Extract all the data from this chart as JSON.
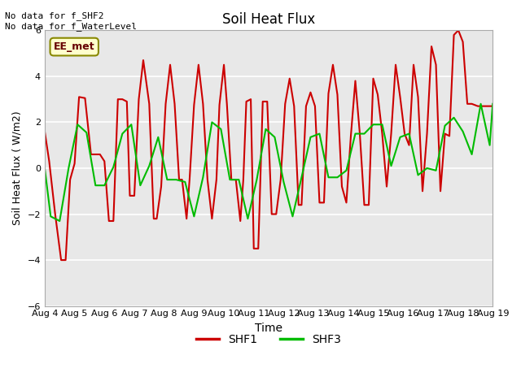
{
  "title": "Soil Heat Flux",
  "xlabel": "Time",
  "ylabel": "Soil Heat Flux ( W/m2)",
  "ylim": [
    -6,
    6
  ],
  "yticks": [
    -6,
    -4,
    -2,
    0,
    2,
    4,
    6
  ],
  "xtick_labels": [
    "Aug 4",
    "Aug 5",
    "Aug 6",
    "Aug 7",
    "Aug 8",
    "Aug 9",
    "Aug 10",
    "Aug 11",
    "Aug 12",
    "Aug 13",
    "Aug 14",
    "Aug 15",
    "Aug 16",
    "Aug 17",
    "Aug 18",
    "Aug 19"
  ],
  "bg_color": "#e8e8e8",
  "annotation_text": "No data for f_SHF2\nNo data for f_WaterLevel",
  "box_label": "EE_met",
  "shf1_color": "#cc0000",
  "shf3_color": "#00bb00",
  "shf1_x": [
    0.0,
    0.15,
    0.35,
    0.55,
    0.7,
    0.85,
    1.0,
    1.15,
    1.35,
    1.55,
    1.7,
    1.85,
    2.0,
    2.15,
    2.3,
    2.45,
    2.6,
    2.75,
    2.85,
    3.0,
    3.15,
    3.3,
    3.5,
    3.65,
    3.75,
    3.9,
    4.05,
    4.2,
    4.35,
    4.5,
    4.6,
    4.75,
    4.85,
    5.0,
    5.15,
    5.3,
    5.45,
    5.6,
    5.75,
    5.85,
    6.0,
    6.1,
    6.25,
    6.4,
    6.55,
    6.65,
    6.75,
    6.9,
    7.0,
    7.15,
    7.3,
    7.45,
    7.6,
    7.75,
    7.9,
    8.05,
    8.2,
    8.35,
    8.5,
    8.6,
    8.75,
    8.9,
    9.05,
    9.2,
    9.35,
    9.5,
    9.65,
    9.8,
    9.95,
    10.1,
    10.25,
    10.4,
    10.55,
    10.7,
    10.85,
    11.0,
    11.15,
    11.3,
    11.45,
    11.6,
    11.75,
    11.9,
    12.05,
    12.2,
    12.35,
    12.5,
    12.65,
    12.8,
    12.95,
    13.1,
    13.25,
    13.4,
    13.55,
    13.7,
    13.85,
    14.0,
    14.15,
    14.3,
    14.5,
    14.7,
    14.9,
    15.0
  ],
  "shf1_y": [
    1.6,
    0.3,
    -2.0,
    -4.0,
    -4.0,
    -0.5,
    0.2,
    3.1,
    3.05,
    0.6,
    0.6,
    0.6,
    0.3,
    -2.3,
    -2.3,
    3.0,
    3.0,
    2.9,
    -1.2,
    -1.2,
    3.0,
    4.7,
    2.8,
    -2.2,
    -2.2,
    -0.8,
    2.8,
    4.5,
    2.8,
    -0.5,
    -0.5,
    -2.2,
    -0.5,
    2.75,
    4.5,
    2.8,
    -0.5,
    -2.2,
    -0.5,
    2.75,
    4.5,
    2.8,
    -0.5,
    -0.5,
    -2.3,
    -0.5,
    2.9,
    3.0,
    -3.5,
    -3.5,
    2.9,
    2.9,
    -2.0,
    -2.0,
    -0.5,
    2.8,
    3.9,
    2.7,
    -1.6,
    -1.6,
    2.7,
    3.3,
    2.7,
    -1.5,
    -1.5,
    3.25,
    4.5,
    3.2,
    -0.8,
    -1.5,
    1.4,
    3.8,
    1.5,
    -1.6,
    -1.6,
    3.9,
    3.2,
    1.5,
    -0.8,
    1.5,
    4.5,
    3.1,
    1.5,
    1.0,
    4.5,
    3.1,
    -1.0,
    1.5,
    5.3,
    4.5,
    -1.0,
    1.5,
    1.4,
    5.8,
    6.0,
    5.5,
    2.8,
    2.8,
    2.7,
    2.7,
    2.7,
    2.7
  ],
  "shf3_x": [
    0.0,
    0.2,
    0.5,
    0.8,
    1.1,
    1.4,
    1.7,
    2.0,
    2.3,
    2.6,
    2.9,
    3.2,
    3.5,
    3.8,
    4.1,
    4.4,
    4.7,
    5.0,
    5.3,
    5.6,
    5.9,
    6.2,
    6.5,
    6.8,
    7.1,
    7.4,
    7.7,
    8.0,
    8.3,
    8.6,
    8.9,
    9.2,
    9.5,
    9.8,
    10.1,
    10.4,
    10.7,
    11.0,
    11.3,
    11.6,
    11.9,
    12.2,
    12.5,
    12.8,
    13.1,
    13.4,
    13.7,
    14.0,
    14.3,
    14.6,
    14.9,
    15.0
  ],
  "shf3_y": [
    0.0,
    -2.1,
    -2.3,
    0.0,
    1.9,
    1.55,
    -0.75,
    -0.75,
    0.05,
    1.5,
    1.9,
    -0.75,
    0.1,
    1.35,
    -0.5,
    -0.5,
    -0.6,
    -2.1,
    -0.4,
    2.0,
    1.7,
    -0.5,
    -0.5,
    -2.2,
    -0.5,
    1.7,
    1.35,
    -0.6,
    -2.1,
    -0.4,
    1.35,
    1.5,
    -0.4,
    -0.4,
    -0.1,
    1.5,
    1.5,
    1.9,
    1.9,
    0.1,
    1.35,
    1.5,
    -0.3,
    0.0,
    -0.1,
    1.85,
    2.2,
    1.6,
    0.6,
    2.8,
    1.0,
    2.8
  ]
}
